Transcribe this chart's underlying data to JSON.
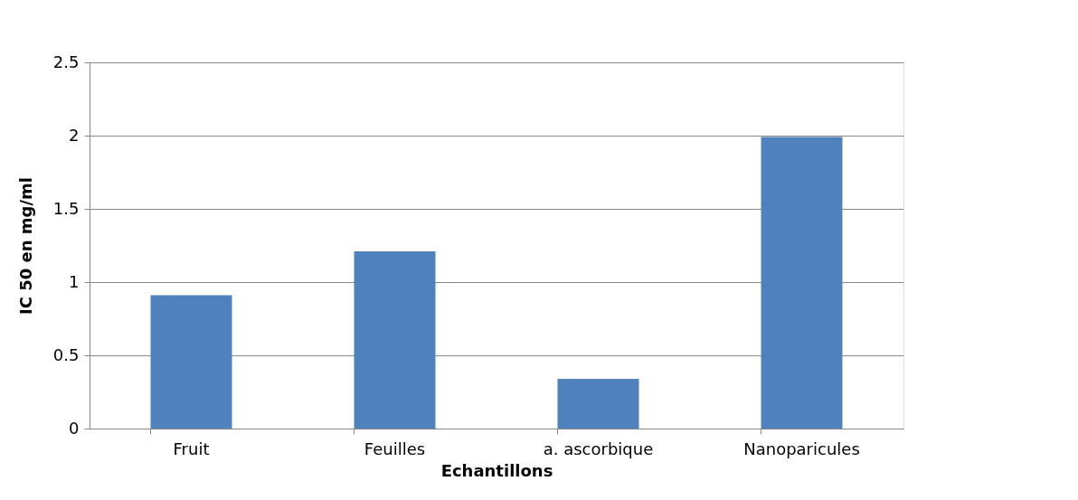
{
  "chart_data": {
    "type": "bar",
    "xlabel": "Echantillons",
    "ylabel": "IC 50 en mg/ml",
    "categories": [
      "Fruit",
      "Feuilles",
      "a. ascorbique",
      "Nanoparicules"
    ],
    "values": [
      0.91,
      1.21,
      0.34,
      1.99
    ],
    "color": "#4f81bd",
    "ylim": [
      0,
      2.5
    ],
    "yticks": [
      0,
      0.5,
      1,
      1.5,
      2,
      2.5
    ],
    "grid": "y"
  }
}
